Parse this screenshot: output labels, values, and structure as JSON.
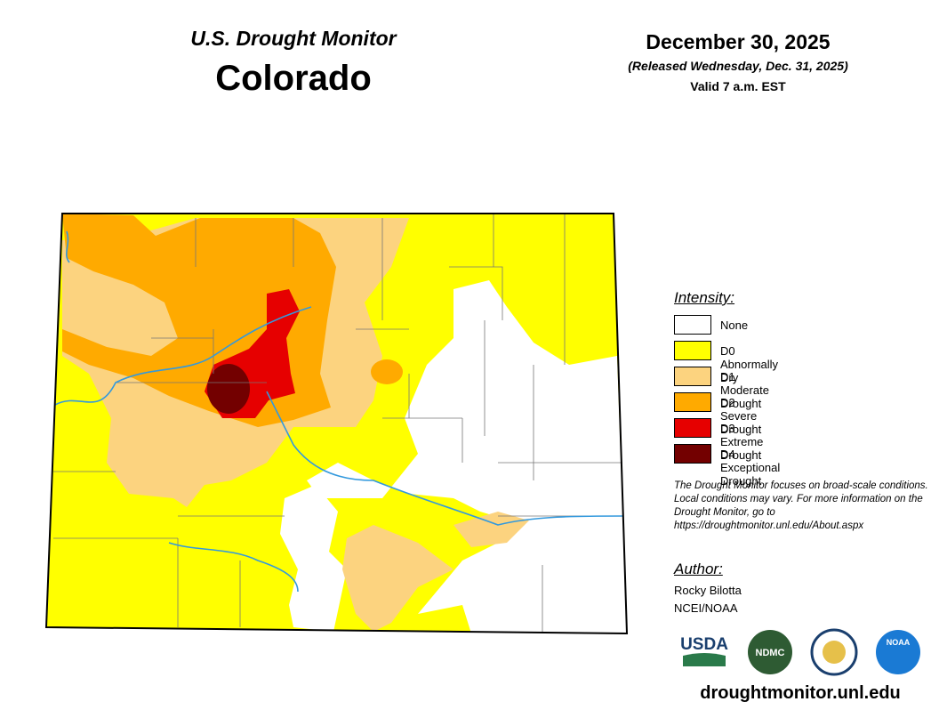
{
  "header": {
    "title": "U.S. Drought Monitor",
    "state": "Colorado",
    "date": "December 30, 2025",
    "released": "(Released Wednesday, Dec. 31, 2025)",
    "valid": "Valid 7 a.m. EST"
  },
  "legend": {
    "title": "Intensity:",
    "items": [
      {
        "label": "None",
        "color": "#ffffff"
      },
      {
        "label": "D0 Abnormally Dry",
        "color": "#ffff00"
      },
      {
        "label": "D1 Moderate Drought",
        "color": "#fcd37f"
      },
      {
        "label": "D2 Severe Drought",
        "color": "#ffaa00"
      },
      {
        "label": "D3 Extreme Drought",
        "color": "#e60000"
      },
      {
        "label": "D4 Exceptional Drought",
        "color": "#730000"
      }
    ]
  },
  "note": "The Drought Monitor focuses on broad-scale conditions. Local conditions may vary. For more information on the Drought Monitor, go to https://droughtmonitor.unl.edu/About.aspx",
  "author": {
    "title": "Author:",
    "name": "Rocky Bilotta",
    "org": "NCEI/NOAA"
  },
  "logos": [
    "USDA",
    "NDMC",
    "NOAA"
  ],
  "url": "droughtmonitor.unl.edu"
}
